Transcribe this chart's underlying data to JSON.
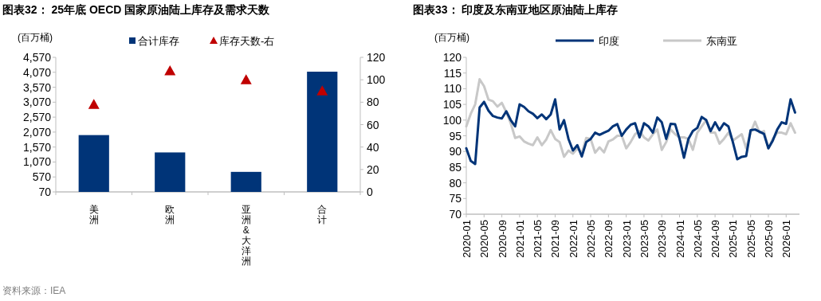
{
  "chart_data": [
    {
      "type": "bar",
      "title": "图表32：  25年底 OECD 国家原油陆上库存及需求天数",
      "ylabel": "(百万桶)",
      "categories": [
        "美洲",
        "欧洲",
        "亚洲&大洋洲",
        "合计"
      ],
      "series": [
        {
          "name": "合计库存",
          "type": "bar",
          "color": "#003478",
          "values": [
            1970,
            1390,
            740,
            4090
          ]
        },
        {
          "name": "库存天数-右",
          "type": "scatter",
          "marker": "triangle",
          "axis": "y2",
          "color": "#c00000",
          "values": [
            78,
            108,
            100,
            90
          ]
        }
      ],
      "ylim": [
        70,
        4570
      ],
      "yticks": [
        70,
        570,
        {
          "value": 1070,
          "label": "1,070"
        },
        {
          "value": 1570,
          "label": "1,570"
        },
        {
          "value": 2070,
          "label": "2,070"
        },
        {
          "value": 2570,
          "label": "2,570"
        },
        {
          "value": 3070,
          "label": "3,070"
        },
        {
          "value": 3570,
          "label": "3,570"
        },
        {
          "value": 4070,
          "label": "4,070"
        },
        {
          "value": 4570,
          "label": "4,570"
        }
      ],
      "y2lim": [
        0,
        120
      ],
      "y2ticks": [
        0,
        20,
        40,
        60,
        80,
        100,
        120
      ],
      "legend": "top",
      "annotations": [
        "资料来源：IEA"
      ]
    },
    {
      "type": "line",
      "title": "图表33：  印度及东南亚地区原油陆上库存",
      "ylabel": "(百万桶)",
      "categories": [
        "2020-01",
        null,
        null,
        null,
        "2020-05",
        null,
        null,
        null,
        "2020-09",
        null,
        null,
        null,
        "2021-01",
        null,
        null,
        null,
        "2021-05",
        null,
        null,
        null,
        "2021-09",
        null,
        null,
        null,
        "2022-01",
        null,
        null,
        null,
        "2022-05",
        null,
        null,
        null,
        "2022-09",
        null,
        null,
        null,
        "2023-01",
        null,
        null,
        null,
        "2023-05",
        null,
        null,
        null,
        "2023-09",
        null,
        null,
        null,
        "2024-01",
        null,
        null,
        null,
        "2024-05",
        null,
        null,
        null,
        "2024-09",
        null,
        null,
        null,
        "2025-01",
        null,
        null,
        null,
        "2025-05",
        null,
        null,
        null,
        "2025-09",
        null,
        null,
        null,
        "2026-01",
        null,
        null
      ],
      "series": [
        {
          "name": "印度",
          "color": "#003478",
          "values": [
            91,
            87,
            86,
            104,
            105.8,
            103,
            101.3,
            100.8,
            100.5,
            102.8,
            100,
            98,
            105,
            104.2,
            102.8,
            102,
            100.6,
            101.8,
            100.3,
            101.8,
            106.6,
            97,
            100,
            94,
            90.3,
            92,
            88.4,
            93,
            94,
            96,
            95.3,
            96,
            96.6,
            98,
            98.7,
            95,
            97,
            98.5,
            99,
            94.5,
            99,
            98,
            96,
            100.8,
            99.3,
            94,
            98.8,
            98.7,
            94,
            88,
            94,
            96.5,
            97.5,
            101,
            100,
            96.5,
            99.3,
            96.8,
            99,
            98,
            93,
            87.5,
            88.3,
            88.5,
            96.8,
            97,
            96.3,
            95.6,
            91,
            93.5,
            97,
            99.3,
            98.8,
            106.6,
            102.4
          ]
        },
        {
          "name": "东南亚",
          "color": "#c8c8c8",
          "values": [
            98,
            102,
            105,
            113,
            110.8,
            106.5,
            106,
            104.3,
            105.5,
            102.5,
            99,
            94.3,
            94.8,
            93.2,
            92.5,
            92,
            94.5,
            92,
            93.8,
            96.8,
            94,
            93,
            88.3,
            90.3,
            89.3,
            91,
            89.5,
            94.3,
            94,
            89.6,
            91.3,
            89.7,
            93.2,
            93.8,
            95,
            95,
            91,
            93,
            95.5,
            96.5,
            94.5,
            93.5,
            95.5,
            97,
            90.5,
            93,
            97,
            95.5,
            94.5,
            94.5,
            94,
            90.5,
            96,
            98,
            100,
            96,
            96,
            92.5,
            94,
            96,
            93.5,
            94.5,
            95.5,
            91,
            96,
            99.5,
            96,
            96.5,
            91,
            94,
            96,
            96,
            95.5,
            99,
            96
          ]
        }
      ],
      "ylim": [
        70,
        120
      ],
      "yticks": [
        70,
        75,
        80,
        85,
        90,
        95,
        100,
        105,
        110,
        115,
        120
      ],
      "legend": "top"
    }
  ]
}
